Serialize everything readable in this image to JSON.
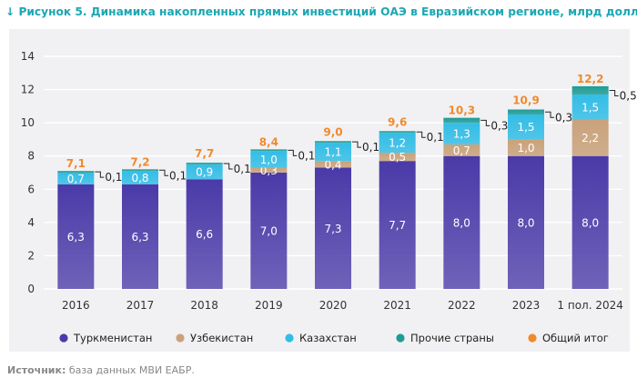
{
  "title": "↓ Рисунок 5. Динамика накопленных прямых инвестиций ОАЭ в Евразийском регионе, млрд долл.",
  "source": {
    "label": "Источник:",
    "text": "база данных МВИ ЕАБР."
  },
  "colors": {
    "Туркменистан": "#4a3aa8",
    "Узбекистан": "#c9a27a",
    "Казахстан": "#33bde6",
    "Прочие страны": "#1e9c94",
    "Общий итог": "#f08a2c"
  },
  "chart_data": {
    "type": "bar",
    "stacked": true,
    "categories": [
      "2016",
      "2017",
      "2018",
      "2019",
      "2020",
      "2021",
      "2022",
      "2023",
      "1 пол. 2024"
    ],
    "series": [
      {
        "name": "Туркменистан",
        "values": [
          6.3,
          6.3,
          6.6,
          7.0,
          7.3,
          7.7,
          8.0,
          8.0,
          8.0
        ],
        "labels": [
          "6,3",
          "6,3",
          "6,6",
          "7,0",
          "7,3",
          "7,7",
          "8,0",
          "8,0",
          "8,0"
        ]
      },
      {
        "name": "Узбекистан",
        "values": [
          0,
          0,
          0,
          0.3,
          0.4,
          0.5,
          0.7,
          1.0,
          2.2
        ],
        "labels": [
          "",
          "",
          "",
          "0,3",
          "0,4",
          "0,5",
          "0,7",
          "1,0",
          "2,2"
        ]
      },
      {
        "name": "Казахстан",
        "values": [
          0.7,
          0.8,
          0.9,
          1.0,
          1.1,
          1.2,
          1.3,
          1.5,
          1.5
        ],
        "labels": [
          "0,7",
          "0,8",
          "0,9",
          "1,0",
          "1,1",
          "1,2",
          "1,3",
          "1,5",
          "1,5"
        ]
      },
      {
        "name": "Прочие страны",
        "values": [
          0.1,
          0.1,
          0.1,
          0.1,
          0.1,
          0.1,
          0.3,
          0.3,
          0.5
        ],
        "labels": [
          "0,1",
          "0,1",
          "0,1",
          "0,1",
          "0,1",
          "0,1",
          "0,3",
          "0,3",
          "0,5"
        ]
      }
    ],
    "totals": {
      "name": "Общий итог",
      "values": [
        7.1,
        7.2,
        7.7,
        8.4,
        9.0,
        9.6,
        10.3,
        10.9,
        12.2
      ],
      "labels": [
        "7,1",
        "7,2",
        "7,7",
        "8,4",
        "9,0",
        "9,6",
        "10,3",
        "10,9",
        "12,2"
      ]
    },
    "yticks": [
      "0",
      "2",
      "4",
      "6",
      "8",
      "10",
      "12",
      "14"
    ],
    "ylim": [
      0,
      14
    ],
    "grid": true,
    "legend": [
      "Туркменистан",
      "Узбекистан",
      "Казахстан",
      "Прочие страны",
      "Общий итог"
    ],
    "legend_position": "bottom"
  }
}
